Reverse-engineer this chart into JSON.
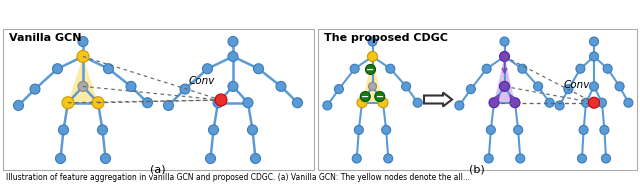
{
  "title_a": "Vanilla GCN",
  "title_b": "The proposed CDGC",
  "caption_a": "(a)",
  "caption_b": "(b)",
  "bg_color": "#ffffff",
  "node_color": "#5b9bd5",
  "node_ec": "#3a7abf",
  "yellow_node": "#f5c518",
  "yellow_node_ec": "#cc9900",
  "gray_node": "#aaaaaa",
  "gray_node_ec": "#888888",
  "red_node": "#e63030",
  "red_node_ec": "#cc0000",
  "purple_node": "#7744bb",
  "purple_node_ec": "#5522aa",
  "green_node": "#1a7a1a",
  "green_node_ec": "#005500",
  "yellow_fill": "#fce48a",
  "purple_fill": "#c8a0e8",
  "skeleton_lw": 1.8,
  "skeleton_color": "#5b9bd5",
  "dashed_color": "#666666",
  "conv_label": "Conv",
  "panel_border": "#aaaaaa"
}
